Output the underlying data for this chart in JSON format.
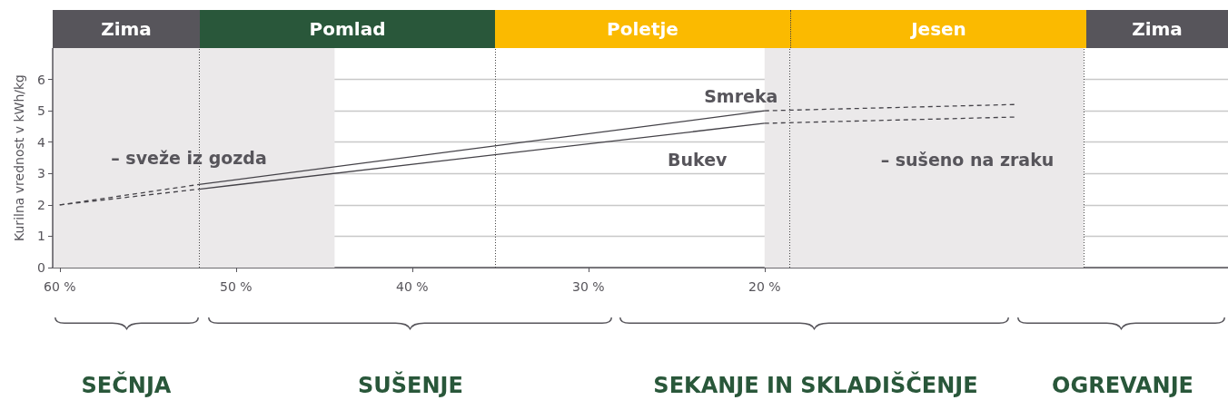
{
  "chart_data": {
    "type": "line",
    "ylabel": "Kurilna vrednost v kWh/kg",
    "xlim": [
      60.4,
      -6.3
    ],
    "xticks": [
      {
        "value": 60,
        "label": "60 %"
      },
      {
        "value": 50,
        "label": "50 %"
      },
      {
        "value": 40,
        "label": "40 %"
      },
      {
        "value": 30,
        "label": "30 %"
      },
      {
        "value": 20,
        "label": "20 %"
      }
    ],
    "ylim": [
      0,
      7
    ],
    "yticks": [
      0,
      1,
      2,
      3,
      4,
      5,
      6
    ],
    "grid": "y",
    "marker": "none",
    "series": [
      {
        "color": "#444248",
        "line_style": "dashed",
        "x": [
          60,
          52.1
        ],
        "values": [
          2,
          2.65
        ]
      },
      {
        "name": "Smreka",
        "color": "#444248",
        "line_style": "solid",
        "x": [
          52.1,
          20
        ],
        "values": [
          2.65,
          5.0
        ]
      },
      {
        "color": "#444248",
        "line_style": "dashed",
        "x": [
          20,
          5.8
        ],
        "values": [
          5.0,
          5.2
        ]
      },
      {
        "color": "#444248",
        "line_style": "dashed",
        "x": [
          60,
          52.1
        ],
        "values": [
          2,
          2.5
        ]
      },
      {
        "name": "Bukev",
        "color": "#444248",
        "line_style": "solid",
        "x": [
          52.1,
          20
        ],
        "values": [
          2.5,
          4.6
        ]
      },
      {
        "color": "#444248",
        "line_style": "dashed",
        "x": [
          20,
          5.8
        ],
        "values": [
          4.6,
          4.8
        ]
      }
    ],
    "bands": [
      {
        "axis": "x",
        "from": 60.4,
        "to": 44.4,
        "color": "#ebe9ea"
      },
      {
        "axis": "x",
        "from": 20,
        "to": 1.9,
        "color": "#ebe9ea"
      }
    ],
    "ref_lines": [
      {
        "axis": "x",
        "value": 52.1,
        "line_style": "dotted"
      },
      {
        "axis": "x",
        "value": 35.3,
        "line_style": "dotted"
      },
      {
        "axis": "x",
        "value": 18.6,
        "line_style": "dotted"
      },
      {
        "axis": "x",
        "value": 1.9,
        "line_style": "dotted"
      }
    ],
    "annotations": [
      "– sveže iz gozda",
      "– sušeno na zraku",
      "SEČNJA",
      "SUŠENJE",
      "SEKANJE IN SKLADIŠČENJE",
      "OGREVANJE",
      "Zima",
      "Pomlad",
      "Poletje",
      "Jesen",
      "Zima"
    ]
  }
}
